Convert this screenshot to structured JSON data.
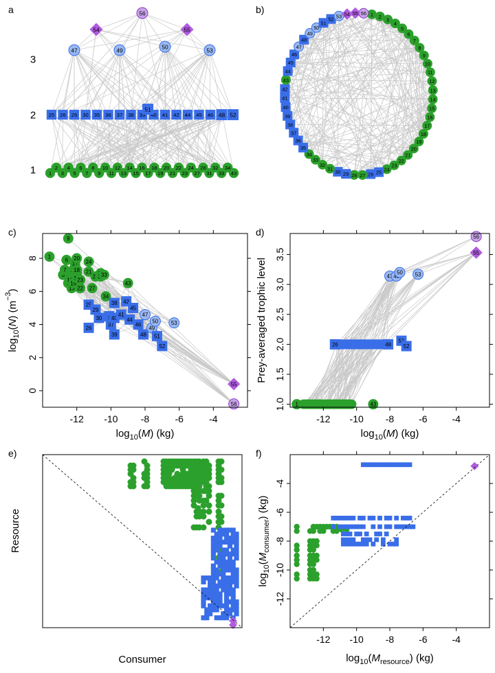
{
  "colors": {
    "basal": "#2ca02c",
    "intermediate": "#3a6ee8",
    "top": "#9ab8f0",
    "apex": "#b05ce0",
    "apex_light": "#c9a4e8",
    "link": "#c8c8c8"
  },
  "panel_labels": [
    "a",
    "b)",
    "c)",
    "d)",
    "e)",
    "f)"
  ],
  "chart_data": [
    {
      "id": "a",
      "type": "network",
      "title": "",
      "level_labels": [
        "1",
        "2",
        "3"
      ],
      "level1_nodes": [
        "1",
        "2",
        "3",
        "4",
        "5",
        "6",
        "7",
        "8",
        "9",
        "10",
        "11",
        "12",
        "13",
        "14",
        "15",
        "16",
        "17",
        "18",
        "19",
        "20",
        "21",
        "22",
        "23",
        "24",
        "27",
        "28",
        "31",
        "32",
        "33",
        "34",
        "43"
      ],
      "level2_nodes": [
        "25",
        "26",
        "29",
        "30",
        "35",
        "36",
        "37",
        "38",
        "39",
        "51",
        "40",
        "41",
        "42",
        "44",
        "45",
        "46",
        "48",
        "52"
      ],
      "level3_nodes": [
        "47",
        "49",
        "50",
        "53"
      ],
      "level4_nodes": [
        "54",
        "56",
        "55"
      ]
    },
    {
      "id": "b",
      "type": "network",
      "title": "",
      "circle_order": [
        "1",
        "2",
        "3",
        "4",
        "5",
        "6",
        "7",
        "8",
        "9",
        "10",
        "11",
        "12",
        "13",
        "14",
        "15",
        "16",
        "17",
        "18",
        "19",
        "20",
        "21",
        "22",
        "23",
        "24",
        "25",
        "26",
        "27",
        "28",
        "29",
        "30",
        "31",
        "32",
        "33",
        "34",
        "35",
        "36",
        "37",
        "38",
        "39",
        "40",
        "41",
        "42",
        "43",
        "44",
        "45",
        "46",
        "47",
        "48",
        "49",
        "50",
        "51",
        "52",
        "53",
        "54",
        "55",
        "56"
      ]
    },
    {
      "id": "c",
      "type": "scatter",
      "xlabel": "log10(M) (kg)",
      "ylabel": "log10(N) (m−3)",
      "xlim": [
        -14,
        -2
      ],
      "ylim": [
        -1,
        9.5
      ],
      "xticks": [
        "-12",
        "-10",
        "-8",
        "-6",
        "-4"
      ],
      "yticks": [
        "0",
        "2",
        "4",
        "6",
        "8"
      ],
      "points": [
        {
          "id": "1",
          "x": -13.6,
          "y": 8.1
        },
        {
          "id": "2",
          "x": -12.7,
          "y": 7.1
        },
        {
          "id": "3",
          "x": -12.8,
          "y": 7.0
        },
        {
          "id": "4",
          "x": -12.2,
          "y": 7.0
        },
        {
          "id": "5",
          "x": -12.5,
          "y": 6.5
        },
        {
          "id": "6",
          "x": -12.6,
          "y": 7.9
        },
        {
          "id": "7",
          "x": -12.7,
          "y": 7.3
        },
        {
          "id": "8",
          "x": -12.3,
          "y": 7.2
        },
        {
          "id": "9",
          "x": -12.5,
          "y": 9.2
        },
        {
          "id": "10",
          "x": -12.4,
          "y": 6.7
        },
        {
          "id": "11",
          "x": -12.1,
          "y": 7.6
        },
        {
          "id": "12",
          "x": -12.2,
          "y": 7.3
        },
        {
          "id": "13",
          "x": -12.3,
          "y": 6.2
        },
        {
          "id": "14",
          "x": -12.1,
          "y": 7.4
        },
        {
          "id": "15",
          "x": -12.2,
          "y": 6.5
        },
        {
          "id": "16",
          "x": -12.0,
          "y": 7.1
        },
        {
          "id": "17",
          "x": -12.1,
          "y": 7.7
        },
        {
          "id": "18",
          "x": -12.0,
          "y": 7.3
        },
        {
          "id": "19",
          "x": -12.0,
          "y": 6.8
        },
        {
          "id": "20",
          "x": -12.0,
          "y": 8.0
        },
        {
          "id": "21",
          "x": -11.3,
          "y": 7.2
        },
        {
          "id": "22",
          "x": -11.8,
          "y": 6.2
        },
        {
          "id": "23",
          "x": -11.8,
          "y": 6.7
        },
        {
          "id": "24",
          "x": -11.3,
          "y": 7.8
        },
        {
          "id": "25",
          "x": -11.3,
          "y": 5.2
        },
        {
          "id": "26",
          "x": -11.3,
          "y": 3.8
        },
        {
          "id": "27",
          "x": -11.1,
          "y": 6.2
        },
        {
          "id": "28",
          "x": -10.9,
          "y": 6.9
        },
        {
          "id": "29",
          "x": -10.9,
          "y": 4.9
        },
        {
          "id": "30",
          "x": -10.7,
          "y": 4.4
        },
        {
          "id": "31",
          "x": -10.6,
          "y": 7.1
        },
        {
          "id": "32",
          "x": -10.6,
          "y": 6.9
        },
        {
          "id": "33",
          "x": -10.4,
          "y": 7.0
        },
        {
          "id": "34",
          "x": -10.3,
          "y": 5.7
        },
        {
          "id": "35",
          "x": -10.1,
          "y": 4.5
        },
        {
          "id": "36",
          "x": -10.0,
          "y": 4.4
        },
        {
          "id": "37",
          "x": -10.0,
          "y": 4.0
        },
        {
          "id": "38",
          "x": -9.8,
          "y": 5.3
        },
        {
          "id": "39",
          "x": -9.8,
          "y": 3.4
        },
        {
          "id": "40",
          "x": -9.8,
          "y": 4.4
        },
        {
          "id": "41",
          "x": -9.4,
          "y": 4.6
        },
        {
          "id": "42",
          "x": -9.1,
          "y": 5.4
        },
        {
          "id": "43",
          "x": -9.0,
          "y": 6.5
        },
        {
          "id": "44",
          "x": -8.9,
          "y": 4.3
        },
        {
          "id": "45",
          "x": -8.7,
          "y": 5.0
        },
        {
          "id": "46",
          "x": -8.4,
          "y": 4.0
        },
        {
          "id": "47",
          "x": -8.0,
          "y": 4.6
        },
        {
          "id": "48",
          "x": -8.1,
          "y": 3.4
        },
        {
          "id": "49",
          "x": -7.6,
          "y": 3.8
        },
        {
          "id": "50",
          "x": -7.4,
          "y": 4.2
        },
        {
          "id": "51",
          "x": -7.3,
          "y": 3.3
        },
        {
          "id": "52",
          "x": -7.0,
          "y": 2.7
        },
        {
          "id": "53",
          "x": -6.3,
          "y": 4.1
        },
        {
          "id": "54",
          "x": -2.8,
          "y": 0.4
        },
        {
          "id": "55",
          "x": -2.8,
          "y": 0.4
        },
        {
          "id": "56",
          "x": -2.8,
          "y": -0.8
        }
      ]
    },
    {
      "id": "d",
      "type": "scatter",
      "xlabel": "log10(M) (kg)",
      "ylabel": "Prey-averaged trophic level",
      "xlim": [
        -14,
        -2
      ],
      "ylim": [
        0.95,
        3.85
      ],
      "xticks": [
        "-12",
        "-10",
        "-8",
        "-6",
        "-4"
      ],
      "yticks": [
        "1.0",
        "1.5",
        "2.0",
        "2.5",
        "3.0",
        "3.5"
      ],
      "points": [
        {
          "id": "1",
          "x": -13.6,
          "y": 1.0
        },
        {
          "id": "43",
          "x": -9.0,
          "y": 1.0
        },
        {
          "id": "26",
          "x": -11.3,
          "y": 2.0
        },
        {
          "id": "48",
          "x": -8.1,
          "y": 2.0
        },
        {
          "id": "51",
          "x": -7.3,
          "y": 2.06
        },
        {
          "id": "52",
          "x": -7.0,
          "y": 1.97
        },
        {
          "id": "47",
          "x": -8.0,
          "y": 3.14
        },
        {
          "id": "49",
          "x": -7.6,
          "y": 3.14
        },
        {
          "id": "50",
          "x": -7.4,
          "y": 3.2
        },
        {
          "id": "53",
          "x": -6.3,
          "y": 3.17
        },
        {
          "id": "54",
          "x": -2.8,
          "y": 3.53
        },
        {
          "id": "55",
          "x": -2.8,
          "y": 3.53
        },
        {
          "id": "56",
          "x": -2.8,
          "y": 3.8
        }
      ]
    },
    {
      "id": "e",
      "type": "matrix",
      "xlabel": "Consumer",
      "ylabel": "Resource"
    },
    {
      "id": "f",
      "type": "scatter",
      "xlabel": "log10(Mresource) (kg)",
      "ylabel": "log10(Mconsumer) (kg)",
      "xlim": [
        -14,
        -2
      ],
      "ylim": [
        -14,
        -2
      ],
      "xticks": [
        "-12",
        "-10",
        "-8",
        "-6",
        "-4"
      ],
      "yticks": [
        "-4",
        "-6",
        "-8",
        "-10",
        "-12"
      ]
    }
  ]
}
